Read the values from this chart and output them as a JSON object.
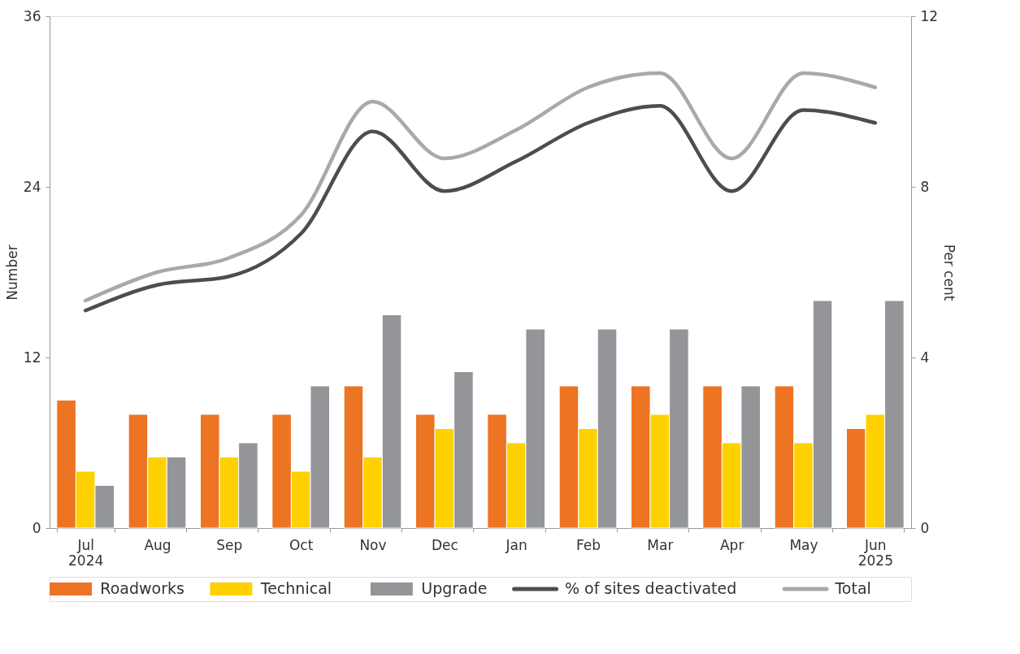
{
  "chart_data": {
    "type": "bar",
    "categories": [
      "Jul 2024",
      "Aug",
      "Sep",
      "Oct",
      "Nov",
      "Dec",
      "Jan",
      "Feb",
      "Mar",
      "Apr",
      "May",
      "Jun 2025"
    ],
    "ylabel": "Number",
    "y2label": "Per cent",
    "ylim": [
      0,
      36
    ],
    "yticks": [
      0,
      12,
      24,
      36
    ],
    "y2lim": [
      0,
      12
    ],
    "y2ticks": [
      0,
      4,
      8,
      12
    ],
    "grid": false,
    "legend": "bottom",
    "series": [
      {
        "name": "Roadworks",
        "color": "#ed7422",
        "values": [
          9,
          8,
          8,
          8,
          10,
          8,
          8,
          10,
          10,
          10,
          10,
          7
        ]
      },
      {
        "name": "Technical",
        "color": "#ffd100",
        "values": [
          4,
          5,
          5,
          4,
          5,
          7,
          6,
          7,
          8,
          6,
          6,
          8
        ]
      },
      {
        "name": "Upgrade",
        "color": "#939598",
        "values": [
          3,
          5,
          6,
          10,
          15,
          11,
          14,
          14,
          14,
          10,
          16,
          16
        ]
      },
      {
        "name": "% of sites deactivated",
        "type": "line",
        "axis": "y2",
        "color": "#4d4d4f",
        "values": [
          5.1,
          5.7,
          5.9,
          6.9,
          9.3,
          7.9,
          8.6,
          9.5,
          9.9,
          7.9,
          9.8,
          9.5
        ]
      },
      {
        "name": "Total",
        "type": "line",
        "color": "#a7a9ac",
        "values": [
          16,
          18,
          19,
          22,
          30,
          26,
          28,
          31,
          32,
          26,
          32,
          31
        ]
      }
    ]
  }
}
